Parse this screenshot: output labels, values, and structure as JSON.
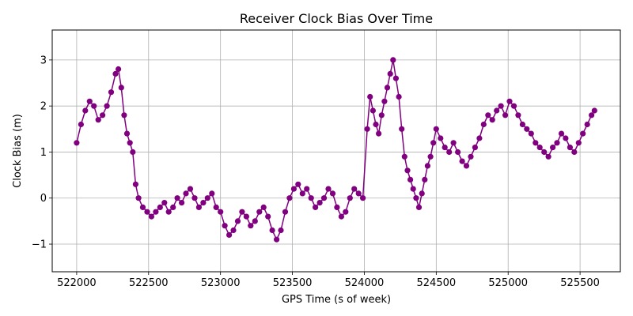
{
  "chart_data": {
    "type": "line",
    "title": "Receiver Clock Bias Over Time",
    "xlabel": "GPS Time (s of week)",
    "ylabel": "Clock Bias (m)",
    "xlim": [
      521830,
      525780
    ],
    "ylim": [
      -1.6,
      3.65
    ],
    "xticks": [
      522000,
      522500,
      523000,
      523500,
      524000,
      524500,
      525000,
      525500
    ],
    "yticks": [
      -1,
      0,
      1,
      2,
      3
    ],
    "grid": true,
    "marker": "circle",
    "color": "#800080",
    "series": [
      {
        "x": [
          522000,
          522030,
          522060,
          522090,
          522120,
          522150,
          522180,
          522210,
          522240,
          522270,
          522290,
          522310,
          522330,
          522350,
          522370,
          522390,
          522410,
          522430,
          522460,
          522490,
          522520,
          522550,
          522580,
          522610,
          522640,
          522670,
          522700,
          522730,
          522760,
          522790,
          522820,
          522850,
          522880,
          522910,
          522940,
          522970,
          523000,
          523030,
          523060,
          523090,
          523120,
          523150,
          523180,
          523210,
          523240,
          523270,
          523300,
          523330,
          523360,
          523390,
          523420,
          523450,
          523480,
          523510,
          523540,
          523570,
          523600,
          523630,
          523660,
          523690,
          523720,
          523750,
          523780,
          523810,
          523840,
          523870,
          523900,
          523930,
          523960,
          523990,
          524020,
          524040,
          524060,
          524080,
          524100,
          524120,
          524140,
          524160,
          524180,
          524200,
          524220,
          524240,
          524260,
          524280,
          524300,
          524320,
          524340,
          524360,
          524380,
          524400,
          524420,
          524440,
          524460,
          524480,
          524500,
          524530,
          524560,
          524590,
          524620,
          524650,
          524680,
          524710,
          524740,
          524770,
          524800,
          524830,
          524860,
          524890,
          524920,
          524950,
          524980,
          525010,
          525040,
          525070,
          525100,
          525130,
          525160,
          525190,
          525220,
          525250,
          525280,
          525310,
          525340,
          525370,
          525400,
          525430,
          525460,
          525490,
          525520,
          525550,
          525580,
          525600
        ],
        "values": [
          1.2,
          1.6,
          1.9,
          2.1,
          2.0,
          1.7,
          1.8,
          2.0,
          2.3,
          2.7,
          2.8,
          2.4,
          1.8,
          1.4,
          1.2,
          1.0,
          0.3,
          0.0,
          -0.2,
          -0.3,
          -0.4,
          -0.3,
          -0.2,
          -0.1,
          -0.3,
          -0.2,
          0.0,
          -0.1,
          0.1,
          0.2,
          0.0,
          -0.2,
          -0.1,
          0.0,
          0.1,
          -0.2,
          -0.3,
          -0.6,
          -0.8,
          -0.7,
          -0.5,
          -0.3,
          -0.4,
          -0.6,
          -0.5,
          -0.3,
          -0.2,
          -0.4,
          -0.7,
          -0.9,
          -0.7,
          -0.3,
          0.0,
          0.2,
          0.3,
          0.1,
          0.2,
          0.0,
          -0.2,
          -0.1,
          0.0,
          0.2,
          0.1,
          -0.2,
          -0.4,
          -0.3,
          0.0,
          0.2,
          0.1,
          0.0,
          1.5,
          2.2,
          1.9,
          1.6,
          1.4,
          1.8,
          2.1,
          2.4,
          2.7,
          3.0,
          2.6,
          2.2,
          1.5,
          0.9,
          0.6,
          0.4,
          0.2,
          0.0,
          -0.2,
          0.1,
          0.4,
          0.7,
          0.9,
          1.2,
          1.5,
          1.3,
          1.1,
          1.0,
          1.2,
          1.0,
          0.8,
          0.7,
          0.9,
          1.1,
          1.3,
          1.6,
          1.8,
          1.7,
          1.9,
          2.0,
          1.8,
          2.1,
          2.0,
          1.8,
          1.6,
          1.5,
          1.4,
          1.2,
          1.1,
          1.0,
          0.9,
          1.1,
          1.2,
          1.4,
          1.3,
          1.1,
          1.0,
          1.2,
          1.4,
          1.6,
          1.8,
          1.9
        ]
      }
    ]
  }
}
